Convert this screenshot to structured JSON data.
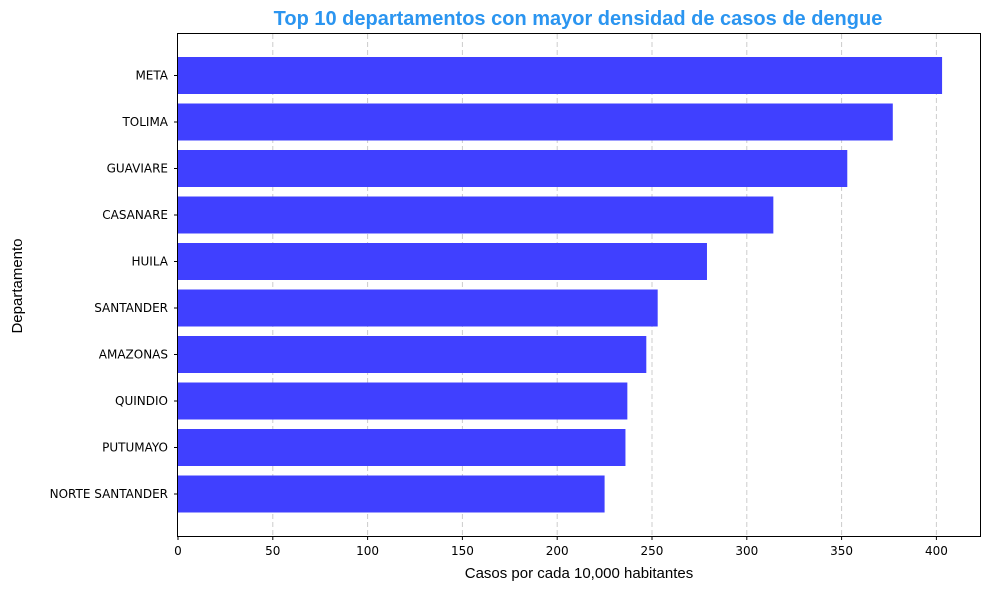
{
  "chart_data": {
    "type": "bar",
    "orientation": "horizontal",
    "title": "Top 10 departamentos con mayor densidad de casos de dengue",
    "xlabel": "Casos por cada 10,000 habitantes",
    "ylabel": "Departamento",
    "categories": [
      "META",
      "TOLIMA",
      "GUAVIARE",
      "CASANARE",
      "HUILA",
      "SANTANDER",
      "AMAZONAS",
      "QUINDIO",
      "PUTUMAYO",
      "NORTE SANTANDER"
    ],
    "values": [
      403,
      377,
      353,
      314,
      279,
      253,
      247,
      237,
      236,
      225
    ],
    "xlim": [
      0,
      423
    ],
    "xticks": [
      0,
      50,
      100,
      150,
      200,
      250,
      300,
      350,
      400
    ],
    "grid": "x-axis, dashed",
    "colors": {
      "bar": "#4040ff",
      "title": "#2b95f0",
      "grid": "#cccccc"
    }
  }
}
